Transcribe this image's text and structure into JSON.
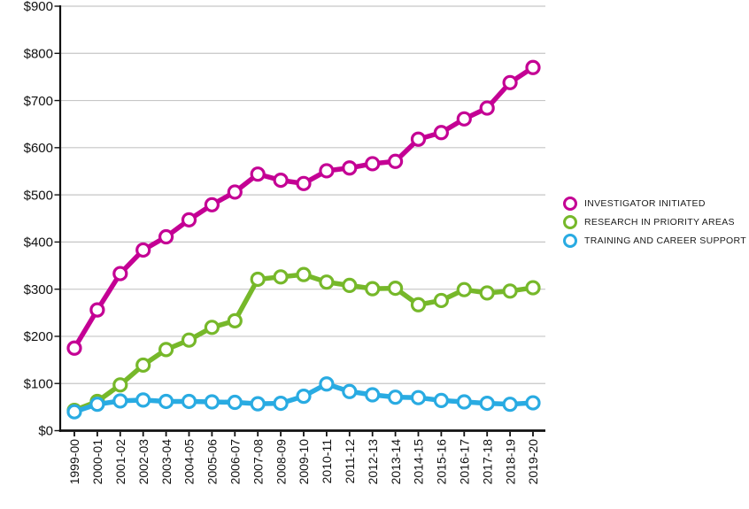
{
  "chart_data": {
    "type": "line",
    "title": "",
    "categories": [
      "1999-00",
      "2000-01",
      "2001-02",
      "2002-03",
      "2003-04",
      "2004-05",
      "2005-06",
      "2006-07",
      "2007-08",
      "2008-09",
      "2009-10",
      "2010-11",
      "2011-12",
      "2012-13",
      "2013-14",
      "2014-15",
      "2015-16",
      "2016-17",
      "2017-18",
      "2018-19",
      "2019-20"
    ],
    "series": [
      {
        "name": "INVESTIGATOR INITIATED",
        "color": "#c40094",
        "values": [
          175,
          256,
          333,
          383,
          411,
          447,
          479,
          506,
          544,
          531,
          524,
          551,
          557,
          566,
          571,
          618,
          632,
          661,
          684,
          738,
          770
        ]
      },
      {
        "name": "RESEARCH IN PRIORITY AREAS",
        "color": "#76b82a",
        "values": [
          43,
          62,
          97,
          139,
          172,
          192,
          219,
          233,
          321,
          326,
          331,
          315,
          308,
          301,
          302,
          267,
          276,
          299,
          292,
          296,
          303
        ]
      },
      {
        "name": "TRAINING AND CAREER SUPPORT",
        "color": "#29abe2",
        "values": [
          40,
          56,
          63,
          65,
          62,
          62,
          61,
          60,
          57,
          58,
          73,
          99,
          83,
          76,
          71,
          70,
          64,
          61,
          58,
          56,
          59
        ]
      }
    ],
    "y_ticks": [
      "$0",
      "$100",
      "$200",
      "$300",
      "$400",
      "$500",
      "$600",
      "$700",
      "$800",
      "$900"
    ],
    "ylim": [
      0,
      900
    ],
    "grid": true,
    "legend_position": "right",
    "axis_color": "#111111",
    "grid_color": "#c6c6c6",
    "marker_fill": "#ffffff"
  }
}
